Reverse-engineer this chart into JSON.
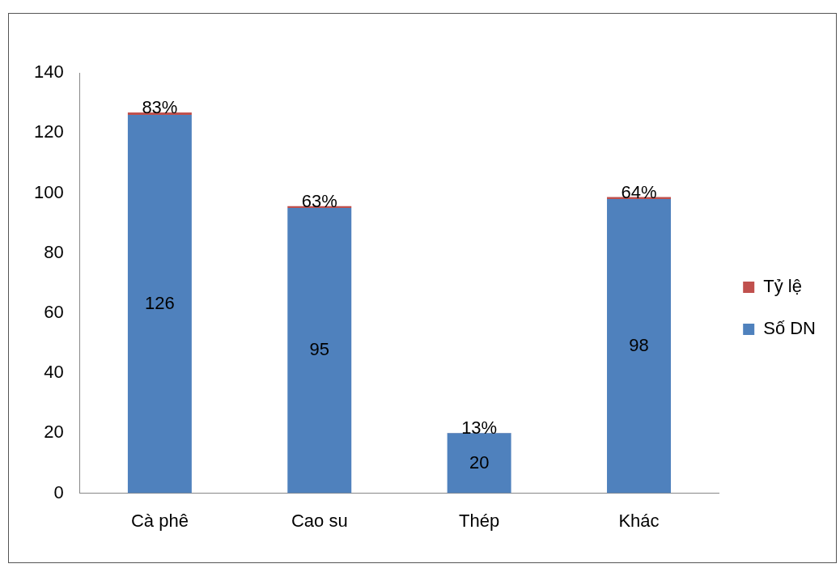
{
  "chart_data": {
    "type": "bar",
    "stacked": true,
    "categories": [
      "Cà phê",
      "Cao su",
      "Thép",
      "Khác"
    ],
    "series": [
      {
        "name": "Số DN",
        "color": "#4f81bd",
        "values": [
          126,
          95,
          20,
          98
        ],
        "value_labels": [
          "126",
          "95",
          "20",
          "98"
        ]
      },
      {
        "name": "Tỷ lệ",
        "color": "#c0504d",
        "values": [
          0.83,
          0.63,
          0.13,
          0.64
        ],
        "value_labels": [
          "83%",
          "63%",
          "13%",
          "64%"
        ]
      }
    ],
    "ylim": [
      0,
      140
    ],
    "yticks": [
      0,
      20,
      40,
      60,
      80,
      100,
      120,
      140
    ],
    "grid": false,
    "legend": "right"
  }
}
